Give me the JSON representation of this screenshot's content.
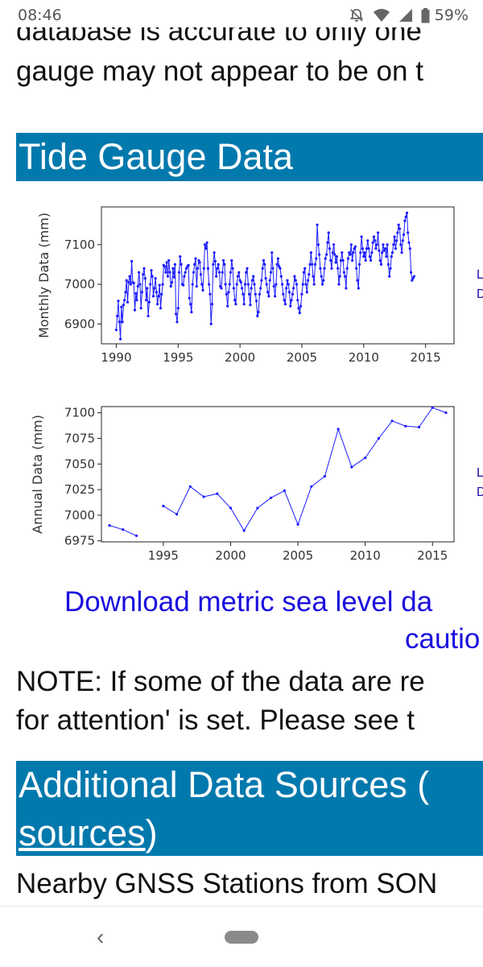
{
  "status_bar": {
    "time": "08:46",
    "battery_percent": "59%",
    "icons": [
      "bell-off-icon",
      "wifi-icon",
      "signal-icon",
      "battery-icon"
    ]
  },
  "intro": {
    "line1": "database is accurate to only one",
    "line2": "gauge may not appear to be on t"
  },
  "section1": {
    "title": "Tide Gauge Data"
  },
  "chart_data": [
    {
      "type": "line",
      "ylabel": "Monthly Data (mm)",
      "xlabel": "",
      "xlim": [
        1988.8,
        2017.3
      ],
      "ylim": [
        6850,
        7195
      ],
      "xticks": [
        1990,
        1995,
        2000,
        2005,
        2010,
        2015
      ],
      "yticks": [
        6900,
        7000,
        7100
      ],
      "x_start": 1990.0,
      "step": 0.0833,
      "values": [
        6885,
        6920,
        6958,
        6905,
        6862,
        6943,
        6905,
        6948,
        6960,
        6980,
        7010,
        6955,
        7005,
        7020,
        7000,
        7058,
        7005,
        7003,
        6935,
        6977,
        6960,
        6995,
        7030,
        7000,
        6940,
        6980,
        7025,
        7040,
        7015,
        6960,
        6990,
        6920,
        6955,
        7000,
        7035,
        7020,
        6970,
        6990,
        7015,
        6980,
        6950,
        6970,
        6998,
        6940,
        6975,
        7000,
        7048,
        7045,
        7030,
        7055,
        7020,
        7060,
        7030,
        6995,
        7005,
        7040,
        7018,
        7050,
        6925,
        6905,
        6940,
        7030,
        7070,
        7050,
        7000,
        6998,
        7020,
        7030,
        7040,
        7045,
        7048,
        6965,
        6950,
        6930,
        7000,
        7030,
        7050,
        7065,
        6995,
        7040,
        7060,
        7055,
        7025,
        7000,
        6985,
        7040,
        7100,
        7090,
        7105,
        7040,
        7000,
        6975,
        6900,
        6950,
        7050,
        7080,
        7058,
        7020,
        7040,
        7050,
        7030,
        6995,
        6990,
        7030,
        7060,
        7050,
        7000,
        6975,
        6945,
        6980,
        7000,
        7030,
        7060,
        7040,
        6990,
        6960,
        6950,
        7000,
        7020,
        7030,
        7010,
        7005,
        6990,
        6975,
        6950,
        7000,
        7030,
        7040,
        7000,
        6975,
        6948,
        6990,
        7010,
        7020,
        7000,
        6975,
        6958,
        6920,
        6930,
        6975,
        6990,
        7010,
        7040,
        7060,
        7050,
        7015,
        7000,
        6980,
        6970,
        7010,
        7030,
        7080,
        7040,
        6995,
        6970,
        7000,
        7050,
        7065,
        7045,
        7040,
        7020,
        7000,
        6975,
        6960,
        6950,
        6990,
        7010,
        7000,
        6980,
        6945,
        6960,
        6975,
        6990,
        7020,
        7010,
        7000,
        6960,
        6940,
        6928,
        6945,
        6975,
        7000,
        7030,
        7040,
        7000,
        6980,
        7010,
        7025,
        7050,
        7080,
        7050,
        7020,
        7000,
        7050,
        7065,
        7150,
        7100,
        7075,
        7040,
        7020,
        7000,
        7010,
        7040,
        7065,
        7075,
        7105,
        7130,
        7090,
        7060,
        7040,
        7080,
        7100,
        7075,
        7055,
        7070,
        7040,
        7000,
        7020,
        7060,
        7080,
        7060,
        7030,
        7020,
        6990,
        7040,
        7065,
        7080,
        7075,
        7100,
        7060,
        7080,
        7090,
        7095,
        7040,
        7010,
        6990,
        7050,
        7080,
        7120,
        7090,
        7070,
        7080,
        7060,
        7090,
        7110,
        7090,
        7070,
        7060,
        7080,
        7105,
        7120,
        7110,
        7090,
        7100,
        7130,
        7085,
        7060,
        7050,
        7080,
        7100,
        7085,
        7090,
        7070,
        7100,
        7050,
        7020,
        7040,
        7070,
        7080,
        7100,
        7120,
        7090,
        7110,
        7130,
        7150,
        7140,
        7100,
        7080,
        7110,
        7125,
        7160,
        7170,
        7180,
        7130,
        7105,
        7090,
        7030,
        7010,
        7015,
        7020
      ]
    },
    {
      "type": "line",
      "ylabel": "Annual Data (mm)",
      "xlabel": "",
      "xlim": [
        1990.4,
        2016.6
      ],
      "ylim": [
        6974,
        7106
      ],
      "xticks": [
        1995,
        2000,
        2005,
        2010,
        2015
      ],
      "yticks": [
        6975,
        7000,
        7025,
        7050,
        7075,
        7100
      ],
      "segments": [
        {
          "x": [
            1991,
            1992,
            1993
          ],
          "values": [
            6990,
            6986,
            6980
          ]
        },
        {
          "x": [
            1995,
            1996,
            1997,
            1998,
            1999,
            2000,
            2001,
            2002,
            2003,
            2004,
            2005,
            2006,
            2007,
            2008,
            2009,
            2010,
            2011,
            2012,
            2013,
            2014,
            2015,
            2016
          ],
          "values": [
            7009,
            7001,
            7028,
            7018,
            7021,
            7007,
            6985,
            7007,
            7017,
            7024,
            6991,
            7028,
            7038,
            7084,
            7047,
            7056,
            7075,
            7092,
            7087,
            7086,
            7105,
            7100
          ]
        }
      ]
    }
  ],
  "side_links": {
    "monthly": [
      "L",
      "D"
    ],
    "annual": [
      "L",
      "D"
    ]
  },
  "download": {
    "line1": "Download metric sea level da",
    "line2": "cautio"
  },
  "note": {
    "line1": "NOTE: If some of the data are re",
    "line2": "for attention' is set. Please see t"
  },
  "section2": {
    "title_line1": "Additional Data Sources (",
    "title_link": "sources",
    "title_tail": ")"
  },
  "nearby": {
    "text": "Nearby GNSS Stations from SON"
  },
  "nav": {
    "back_glyph": "‹"
  }
}
